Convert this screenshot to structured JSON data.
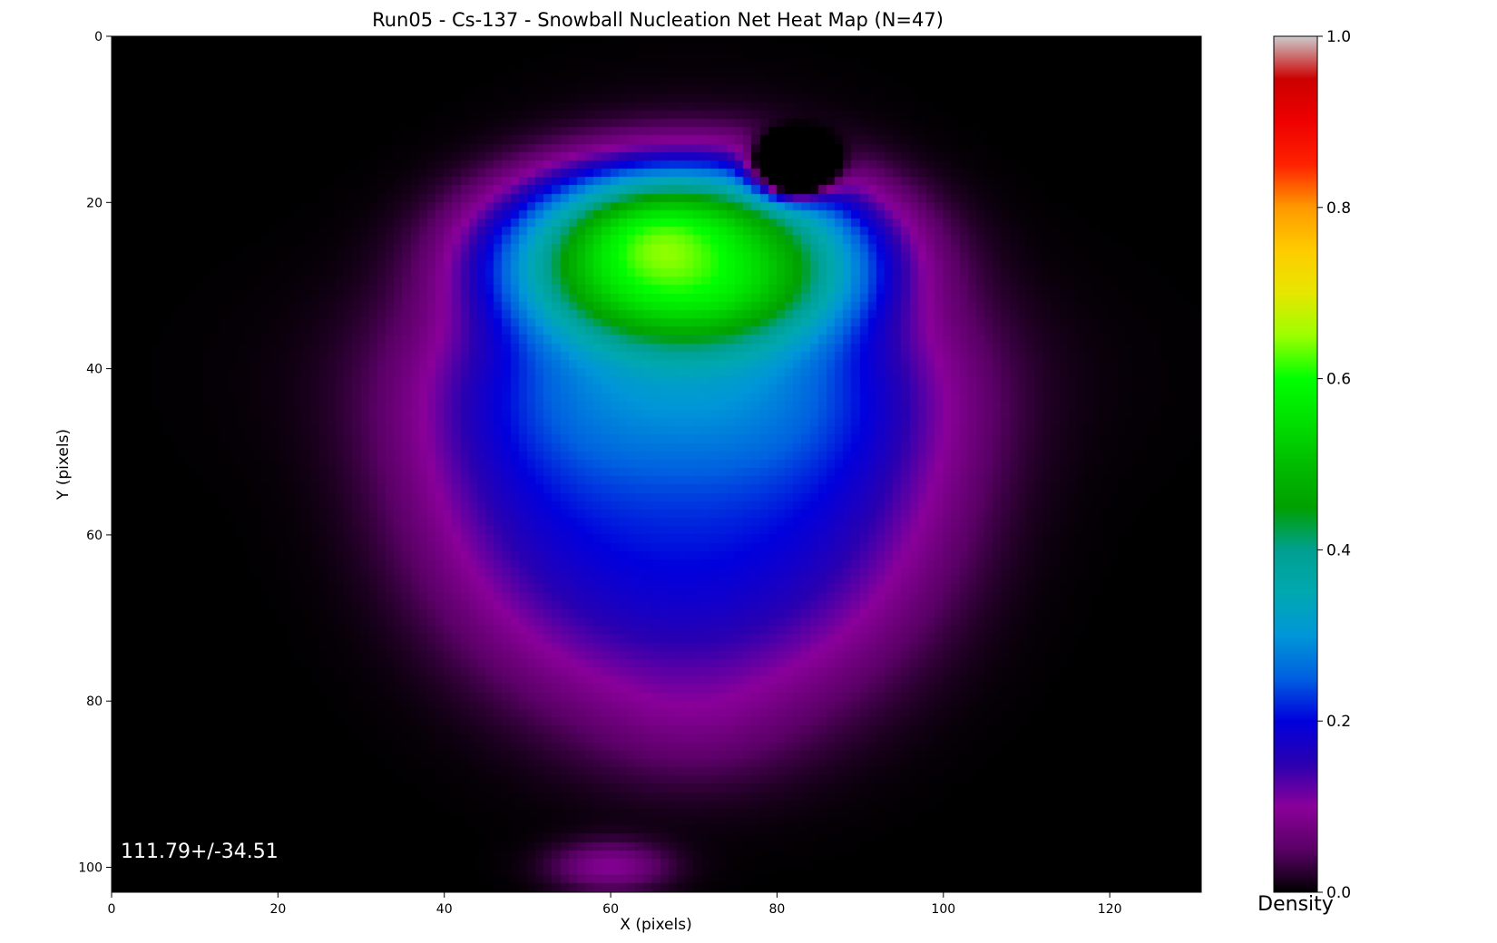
{
  "chart_data": {
    "type": "heatmap",
    "title": "Run05 - Cs-137 - Snowball Nucleation Net Heat Map (N=47)",
    "xlabel": "X (pixels)",
    "ylabel": "Y (pixels)",
    "xlim": [
      0,
      131
    ],
    "ylim": [
      103,
      0
    ],
    "y_inverted": true,
    "x_ticks": [
      0,
      20,
      40,
      60,
      80,
      100,
      120
    ],
    "y_ticks": [
      0,
      20,
      40,
      60,
      80,
      100
    ],
    "grid": false,
    "background": "#000000",
    "annotation": "111.79+/-34.51",
    "colorbar": {
      "label": "Density",
      "range": [
        0.0,
        1.0
      ],
      "ticks": [
        "0.0",
        "0.2",
        "0.4",
        "0.6",
        "0.8",
        "1.0"
      ],
      "colormap": "nipy_spectral-like",
      "stops": [
        {
          "v": 0.0,
          "color": "#000000"
        },
        {
          "v": 0.05,
          "color": "#5a0066"
        },
        {
          "v": 0.1,
          "color": "#8a009a"
        },
        {
          "v": 0.15,
          "color": "#2a00b0"
        },
        {
          "v": 0.2,
          "color": "#0000dd"
        },
        {
          "v": 0.25,
          "color": "#0060e0"
        },
        {
          "v": 0.3,
          "color": "#0096d8"
        },
        {
          "v": 0.35,
          "color": "#00a8b0"
        },
        {
          "v": 0.4,
          "color": "#00a090"
        },
        {
          "v": 0.45,
          "color": "#00a000"
        },
        {
          "v": 0.5,
          "color": "#00bc00"
        },
        {
          "v": 0.55,
          "color": "#00e000"
        },
        {
          "v": 0.6,
          "color": "#00ff00"
        },
        {
          "v": 0.65,
          "color": "#9cff00"
        },
        {
          "v": 0.7,
          "color": "#e6e600"
        },
        {
          "v": 0.75,
          "color": "#ffcc00"
        },
        {
          "v": 0.8,
          "color": "#ff9900"
        },
        {
          "v": 0.85,
          "color": "#ff2200"
        },
        {
          "v": 0.9,
          "color": "#ee0000"
        },
        {
          "v": 0.95,
          "color": "#cc0000"
        },
        {
          "v": 1.0,
          "color": "#cccccc"
        }
      ]
    },
    "density_components": [
      {
        "cx": 70,
        "cy": 50,
        "sx": 33,
        "sy": 34,
        "power": 4,
        "peak": 0.09
      },
      {
        "cx": 68,
        "cy": 52,
        "sx": 30,
        "sy": 27,
        "power": 3,
        "peak": 0.12
      },
      {
        "cx": 70,
        "cy": 84,
        "sx": 12,
        "sy": 7,
        "power": 2,
        "peak": 0.02
      },
      {
        "cx": 60,
        "cy": 100,
        "sx": 7,
        "sy": 3,
        "power": 2,
        "peak": 0.09
      },
      {
        "cx": 69,
        "cy": 41,
        "sx": 29,
        "sy": 12,
        "power": 2,
        "peak": 0.1
      },
      {
        "cx": 69,
        "cy": 26,
        "sx": 23,
        "sy": 11,
        "power": 3,
        "peak": 0.4
      },
      {
        "cx": 66,
        "cy": 24,
        "sx": 10,
        "sy": 6,
        "power": 2,
        "peak": 0.12
      },
      {
        "cx": 82,
        "cy": 16,
        "sx": 4,
        "sy": 3,
        "power": 2,
        "peak": -0.6
      }
    ]
  }
}
